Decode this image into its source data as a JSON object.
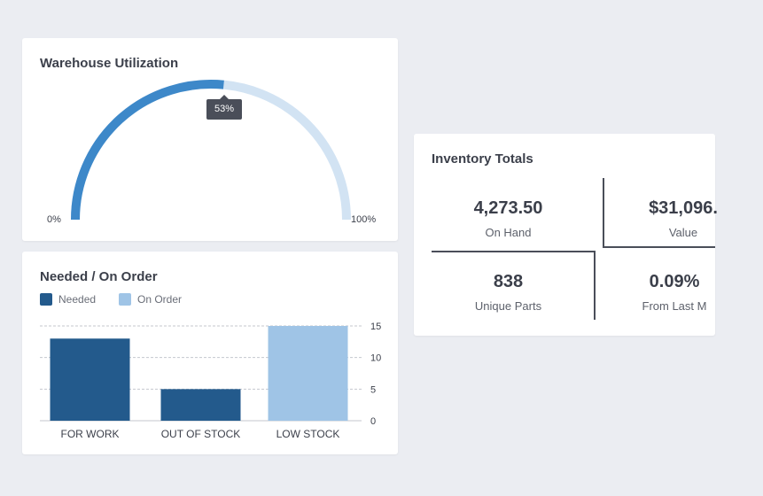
{
  "colors": {
    "gauge_fill": "#3d88c9",
    "gauge_track": "#d2e3f3",
    "needed": "#235a8c",
    "on_order": "#9fc4e6"
  },
  "utilization": {
    "title": "Warehouse Utilization",
    "value_pct": 53,
    "tooltip": "53%",
    "min_label": "0%",
    "max_label": "100%"
  },
  "needed_on_order": {
    "title": "Needed / On Order",
    "legend": [
      {
        "label": "Needed",
        "color": "#235a8c"
      },
      {
        "label": "On Order",
        "color": "#9fc4e6"
      }
    ]
  },
  "chart_data": {
    "type": "bar",
    "title": "Needed / On Order",
    "categories": [
      "FOR WORK",
      "OUT OF STOCK",
      "LOW STOCK"
    ],
    "bar_series": [
      "Needed",
      "Needed",
      "On Order"
    ],
    "values": [
      13,
      5,
      15
    ],
    "ylim": [
      0,
      15
    ],
    "yticks": [
      "0",
      "5",
      "10",
      "15"
    ],
    "grid": true,
    "legend_position": "top-left"
  },
  "totals": {
    "title": "Inventory Totals",
    "stats": [
      {
        "value": "4,273.50",
        "label": "On Hand"
      },
      {
        "value": "$31,096.",
        "label": "Value"
      },
      {
        "value": "838",
        "label": "Unique Parts"
      },
      {
        "value": "0.09%",
        "label": "From Last M"
      }
    ]
  }
}
